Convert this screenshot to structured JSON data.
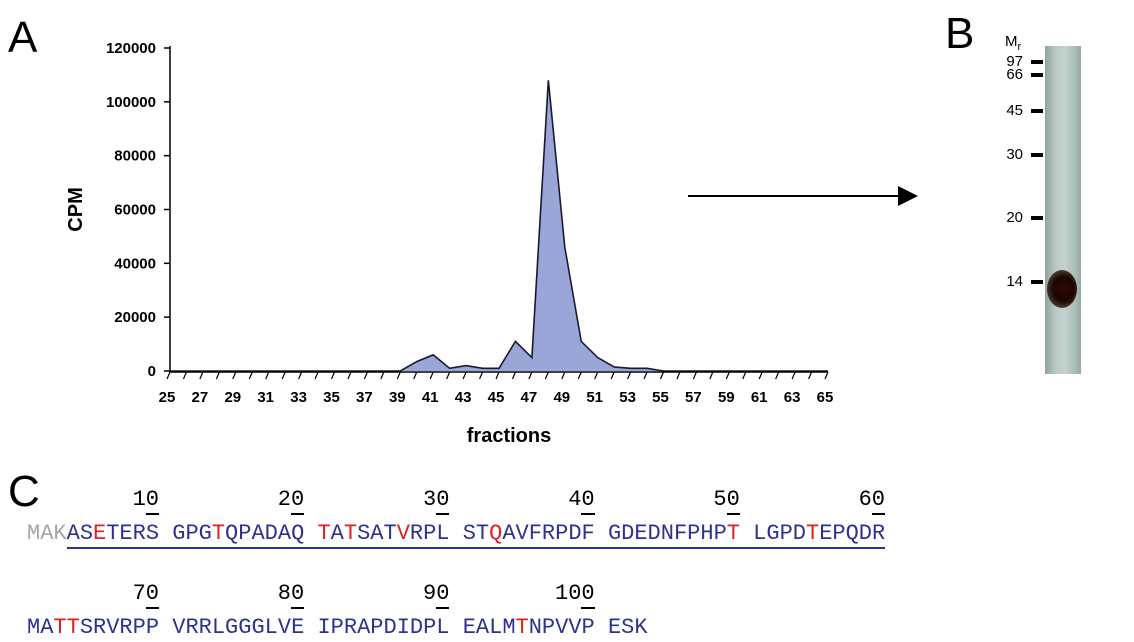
{
  "panels": {
    "a": "A",
    "b": "B",
    "c": "C"
  },
  "chart_data": {
    "type": "area",
    "xlabel": "fractions",
    "ylabel": "CPM",
    "ylim": [
      0,
      120000
    ],
    "xlim": [
      25,
      65
    ],
    "yticks": [
      0,
      20000,
      40000,
      60000,
      80000,
      100000,
      120000
    ],
    "xtick_labels": [
      "25",
      "27",
      "29",
      "31",
      "33",
      "35",
      "37",
      "39",
      "41",
      "43",
      "45",
      "47",
      "49",
      "51",
      "53",
      "55",
      "57",
      "59",
      "61",
      "63",
      "65"
    ],
    "grid": false,
    "fill_color": "#9aa6d8",
    "line_color": "#1a1a2e",
    "x": [
      25,
      26,
      27,
      28,
      29,
      30,
      31,
      32,
      33,
      34,
      35,
      36,
      37,
      38,
      39,
      40,
      41,
      42,
      43,
      44,
      45,
      46,
      47,
      48,
      49,
      50,
      51,
      52,
      53,
      54,
      55,
      56,
      57,
      58,
      59,
      60,
      61,
      62,
      63,
      64,
      65
    ],
    "values": [
      0,
      0,
      0,
      0,
      0,
      0,
      0,
      0,
      0,
      0,
      0,
      0,
      0,
      0,
      0,
      3500,
      6000,
      1000,
      2000,
      1000,
      1000,
      11000,
      5000,
      108000,
      46000,
      11000,
      5000,
      1500,
      1000,
      1000,
      0,
      0,
      0,
      0,
      0,
      0,
      0,
      0,
      0,
      0,
      0
    ]
  },
  "gel": {
    "header": "M",
    "header_sub": "r",
    "markers": [
      "97",
      "66",
      "45",
      "30",
      "20",
      "14"
    ],
    "band_color": "#2e0a00"
  },
  "sequence": {
    "numbers": [
      "10",
      "20",
      "30",
      "40",
      "50",
      "60",
      "70",
      "80",
      "90",
      "100"
    ],
    "line1": "MAKASETERS GPGTQPADAQ TATSATVRPL STQAVFRPDF GDEDNFPHPT LGPDTEPQDR",
    "line2": "MATTSRVRPP VRRLGGGLVE IPRAPDIDPL EALMTNPVVP ESK",
    "unmapped_prefix_length": 3,
    "modified_positions": [
      6,
      14,
      21,
      23,
      27,
      33,
      50,
      55,
      63,
      64,
      95
    ],
    "colors": {
      "covered": "#2e3191",
      "modified": "#e0201b",
      "unmapped": "#a6a6a6"
    }
  }
}
